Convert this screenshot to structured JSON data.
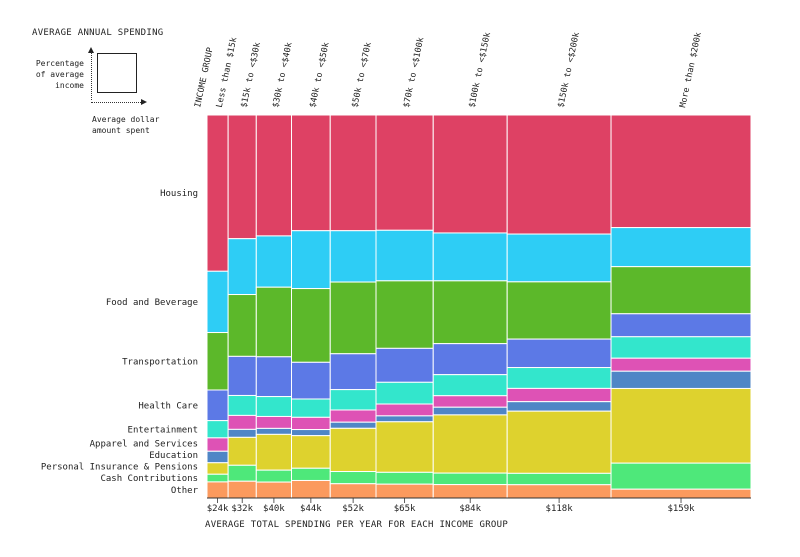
{
  "legend": {
    "title": "AVERAGE ANNUAL SPENDING",
    "y_label_lines": [
      "Percentage",
      "of average",
      "income"
    ],
    "x_label_lines": [
      "Average dollar",
      "amount spent"
    ]
  },
  "chart_data": {
    "type": "marimekko",
    "column_header_label": "INCOME GROUP",
    "x_axis_title": "AVERAGE TOTAL SPENDING PER YEAR FOR EACH INCOME GROUP",
    "groups": [
      {
        "label": "Less than $15k",
        "spending_label": "$24k",
        "spending": 24
      },
      {
        "label": "$15k to <$30k",
        "spending_label": "$32k",
        "spending": 32
      },
      {
        "label": "$30k to <$40k",
        "spending_label": "$40k",
        "spending": 40
      },
      {
        "label": "$40k to <$50k",
        "spending_label": "$44k",
        "spending": 44
      },
      {
        "label": "$50k to <$70k",
        "spending_label": "$52k",
        "spending": 52
      },
      {
        "label": "$70k to <$100k",
        "spending_label": "$65k",
        "spending": 65
      },
      {
        "label": "$100k to <$150k",
        "spending_label": "$84k",
        "spending": 84
      },
      {
        "label": "$150k to <$200k",
        "spending_label": "$118k",
        "spending": 118
      },
      {
        "label": "More than $200k",
        "spending_label": "$159k",
        "spending": 159
      }
    ],
    "series": [
      {
        "name": "Housing",
        "color": "#de4164",
        "values": [
          40.8,
          31.0,
          30.4,
          28.4,
          28.4,
          29.2,
          30.8,
          31.4,
          29.4
        ]
      },
      {
        "name": "Food and Beverage",
        "color": "#2ecdf5",
        "values": [
          16.0,
          14.0,
          12.9,
          14.2,
          12.6,
          12.8,
          12.5,
          12.6,
          10.2
        ]
      },
      {
        "name": "Transportation",
        "color": "#5cb82a",
        "values": [
          15.0,
          15.5,
          17.5,
          18.1,
          17.6,
          17.1,
          16.4,
          15.1,
          12.3
        ]
      },
      {
        "name": "Health Care",
        "color": "#5c79e6",
        "values": [
          8.0,
          9.8,
          10.0,
          9.0,
          8.8,
          8.6,
          8.1,
          7.5,
          6.0
        ]
      },
      {
        "name": "Entertainment",
        "color": "#33e6cc",
        "values": [
          4.5,
          5.0,
          5.0,
          4.5,
          5.0,
          5.5,
          5.5,
          5.5,
          5.6
        ]
      },
      {
        "name": "Apparel and Services",
        "color": "#de52b5",
        "values": [
          3.5,
          3.5,
          3.0,
          3.0,
          3.0,
          3.0,
          3.0,
          3.5,
          3.4
        ]
      },
      {
        "name": "Education",
        "color": "#4f86c6",
        "values": [
          3.0,
          2.0,
          1.5,
          1.5,
          1.5,
          1.5,
          2.0,
          2.5,
          4.5
        ]
      },
      {
        "name": "Personal Insurance & Pensions",
        "color": "#ded22e",
        "values": [
          3.0,
          7.0,
          9.0,
          8.0,
          10.6,
          12.8,
          15.2,
          16.4,
          19.5
        ]
      },
      {
        "name": "Cash Contributions",
        "color": "#4ee87a",
        "values": [
          2.0,
          4.0,
          3.0,
          3.0,
          3.0,
          3.0,
          3.0,
          3.0,
          6.8
        ]
      },
      {
        "name": "Other",
        "color": "#fb9a5e",
        "values": [
          4.2,
          4.2,
          4.0,
          4.3,
          3.5,
          3.5,
          3.5,
          3.5,
          2.3
        ]
      }
    ]
  }
}
